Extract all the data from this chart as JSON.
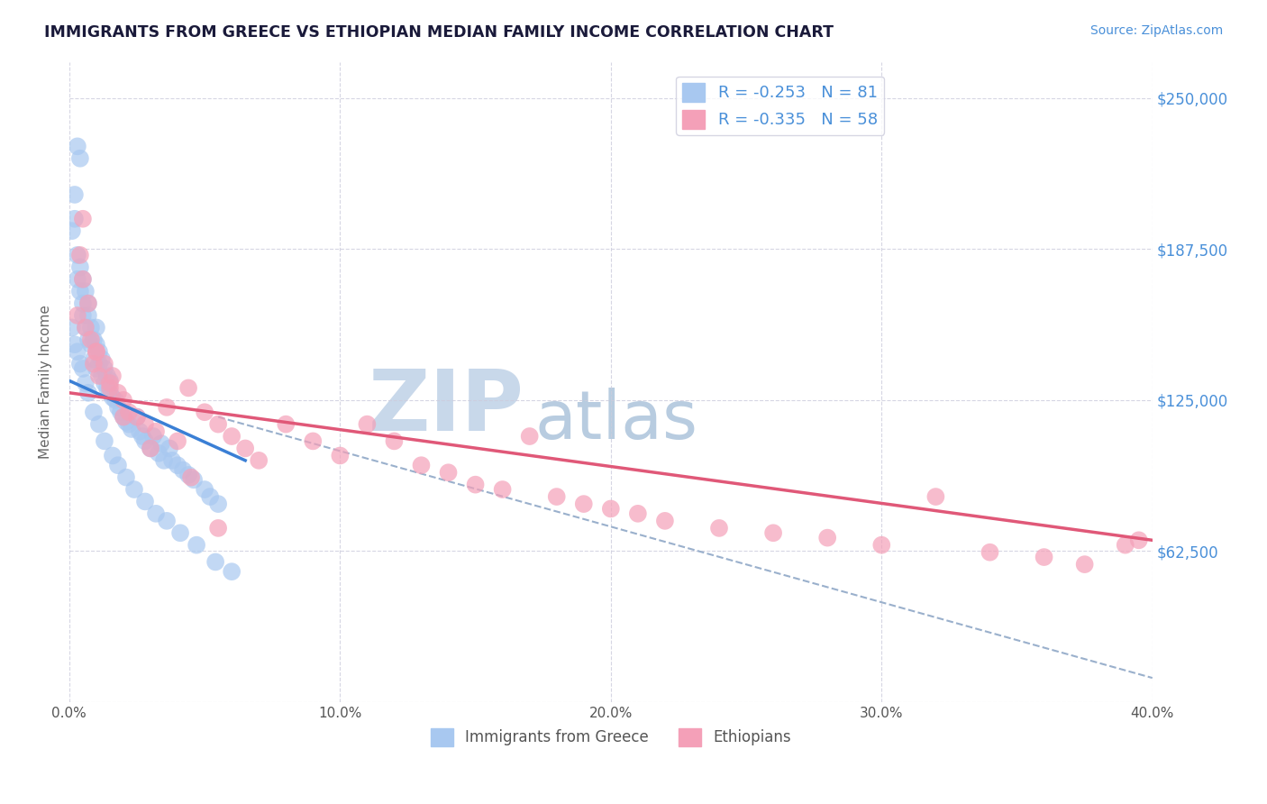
{
  "title": "IMMIGRANTS FROM GREECE VS ETHIOPIAN MEDIAN FAMILY INCOME CORRELATION CHART",
  "source": "Source: ZipAtlas.com",
  "ylabel": "Median Family Income",
  "xlim": [
    0.0,
    0.4
  ],
  "ylim": [
    0,
    265000
  ],
  "yticks": [
    0,
    62500,
    125000,
    187500,
    250000
  ],
  "ytick_labels": [
    "",
    "$62,500",
    "$125,000",
    "$187,500",
    "$250,000"
  ],
  "xticks": [
    0.0,
    0.1,
    0.2,
    0.3,
    0.4
  ],
  "xtick_labels": [
    "0.0%",
    "10.0%",
    "20.0%",
    "30.0%",
    "40.0%"
  ],
  "series1_label": "Immigrants from Greece",
  "series2_label": "Ethiopians",
  "series1_R": -0.253,
  "series1_N": 81,
  "series2_R": -0.335,
  "series2_N": 58,
  "series1_color": "#a8c8f0",
  "series2_color": "#f4a0b8",
  "series1_line_color": "#3a7fd5",
  "series2_line_color": "#e05878",
  "dash_line_color": "#9ab0cc",
  "watermark_zip": "ZIP",
  "watermark_atlas": "atlas",
  "watermark_color_zip": "#c8d8ea",
  "watermark_color_atlas": "#b8cce0",
  "background_color": "#ffffff",
  "title_color": "#1a1a3a",
  "source_color": "#4a90d9",
  "axis_label_color": "#666666",
  "ytick_color": "#4a90d9",
  "xtick_color": "#555555",
  "legend_border_color": "#ccccdd",
  "series1_scatter_x": [
    0.003,
    0.004,
    0.001,
    0.002,
    0.002,
    0.003,
    0.003,
    0.004,
    0.004,
    0.005,
    0.005,
    0.005,
    0.006,
    0.006,
    0.007,
    0.007,
    0.007,
    0.008,
    0.008,
    0.009,
    0.009,
    0.01,
    0.01,
    0.01,
    0.011,
    0.011,
    0.012,
    0.012,
    0.013,
    0.013,
    0.014,
    0.014,
    0.015,
    0.015,
    0.016,
    0.017,
    0.018,
    0.019,
    0.02,
    0.021,
    0.022,
    0.023,
    0.025,
    0.026,
    0.027,
    0.028,
    0.03,
    0.031,
    0.033,
    0.034,
    0.035,
    0.037,
    0.038,
    0.04,
    0.042,
    0.044,
    0.046,
    0.05,
    0.052,
    0.055,
    0.001,
    0.002,
    0.003,
    0.004,
    0.005,
    0.006,
    0.007,
    0.009,
    0.011,
    0.013,
    0.016,
    0.018,
    0.021,
    0.024,
    0.028,
    0.032,
    0.036,
    0.041,
    0.047,
    0.054,
    0.06
  ],
  "series1_scatter_y": [
    230000,
    225000,
    195000,
    200000,
    210000,
    175000,
    185000,
    170000,
    180000,
    165000,
    175000,
    160000,
    170000,
    155000,
    165000,
    150000,
    160000,
    155000,
    148000,
    150000,
    142000,
    148000,
    138000,
    155000,
    140000,
    145000,
    135000,
    142000,
    132000,
    138000,
    130000,
    135000,
    128000,
    133000,
    126000,
    125000,
    122000,
    120000,
    118000,
    116000,
    115000,
    113000,
    118000,
    112000,
    110000,
    108000,
    105000,
    110000,
    103000,
    107000,
    100000,
    105000,
    100000,
    98000,
    96000,
    94000,
    92000,
    88000,
    85000,
    82000,
    155000,
    148000,
    145000,
    140000,
    138000,
    132000,
    128000,
    120000,
    115000,
    108000,
    102000,
    98000,
    93000,
    88000,
    83000,
    78000,
    75000,
    70000,
    65000,
    58000,
    54000
  ],
  "series2_scatter_x": [
    0.003,
    0.004,
    0.005,
    0.006,
    0.007,
    0.008,
    0.009,
    0.01,
    0.011,
    0.013,
    0.015,
    0.016,
    0.018,
    0.02,
    0.022,
    0.025,
    0.028,
    0.032,
    0.036,
    0.04,
    0.044,
    0.05,
    0.055,
    0.06,
    0.065,
    0.07,
    0.08,
    0.09,
    0.1,
    0.11,
    0.12,
    0.13,
    0.14,
    0.15,
    0.16,
    0.17,
    0.18,
    0.19,
    0.2,
    0.21,
    0.22,
    0.24,
    0.26,
    0.28,
    0.3,
    0.32,
    0.34,
    0.36,
    0.375,
    0.39,
    0.005,
    0.01,
    0.015,
    0.02,
    0.03,
    0.045,
    0.055,
    0.395
  ],
  "series2_scatter_y": [
    160000,
    185000,
    175000,
    155000,
    165000,
    150000,
    140000,
    145000,
    135000,
    140000,
    130000,
    135000,
    128000,
    125000,
    120000,
    118000,
    115000,
    112000,
    122000,
    108000,
    130000,
    120000,
    115000,
    110000,
    105000,
    100000,
    115000,
    108000,
    102000,
    115000,
    108000,
    98000,
    95000,
    90000,
    88000,
    110000,
    85000,
    82000,
    80000,
    78000,
    75000,
    72000,
    70000,
    68000,
    65000,
    85000,
    62000,
    60000,
    57000,
    65000,
    200000,
    145000,
    132000,
    118000,
    105000,
    93000,
    72000,
    67000
  ],
  "series1_trend_x": [
    0.0,
    0.065
  ],
  "series1_trend_y": [
    133000,
    100000
  ],
  "series2_trend_x": [
    0.0,
    0.4
  ],
  "series2_trend_y": [
    128000,
    67000
  ],
  "dash_trend_x": [
    0.055,
    0.4
  ],
  "dash_trend_y": [
    118000,
    10000
  ]
}
